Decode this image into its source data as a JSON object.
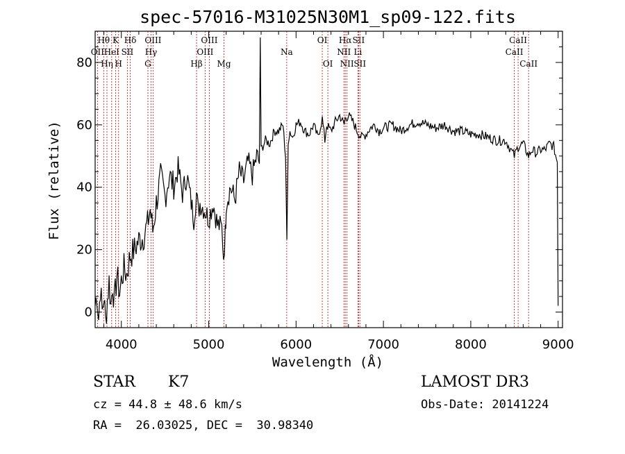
{
  "chart_data": {
    "type": "line",
    "title": "spec-57016-M31025N30M1_sp09-122.fits",
    "xlabel": "Wavelength (Å)",
    "ylabel": "Flux (relative)",
    "xlim": [
      3700,
      9050
    ],
    "ylim": [
      -5,
      90
    ],
    "xticks": [
      4000,
      5000,
      6000,
      7000,
      8000,
      9000
    ],
    "yticks": [
      0,
      20,
      40,
      60,
      80
    ],
    "series": [
      {
        "name": "spectrum",
        "x": [
          3700,
          3720,
          3740,
          3760,
          3780,
          3800,
          3820,
          3840,
          3860,
          3880,
          3900,
          3920,
          3950,
          3980,
          4000,
          4030,
          4060,
          4100,
          4150,
          4200,
          4250,
          4300,
          4330,
          4360,
          4400,
          4450,
          4500,
          4550,
          4600,
          4650,
          4700,
          4750,
          4800,
          4830,
          4860,
          4880,
          4900,
          4950,
          5000,
          5050,
          5100,
          5150,
          5170,
          5190,
          5200,
          5250,
          5300,
          5350,
          5400,
          5450,
          5500,
          5550,
          5580,
          5590,
          5600,
          5650,
          5700,
          5750,
          5800,
          5850,
          5880,
          5895,
          5910,
          5930,
          5960,
          6000,
          6050,
          6100,
          6150,
          6200,
          6250,
          6300,
          6330,
          6350,
          6400,
          6450,
          6500,
          6550,
          6563,
          6600,
          6650,
          6700,
          6750,
          6800,
          6850,
          6900,
          6950,
          7000,
          7100,
          7200,
          7300,
          7400,
          7500,
          7600,
          7700,
          7800,
          7900,
          8000,
          8100,
          8200,
          8300,
          8400,
          8498,
          8542,
          8600,
          8662,
          8700,
          8750,
          8800,
          8850,
          8900,
          8950,
          8990,
          9000
        ],
        "y": [
          2,
          6,
          -2,
          8,
          0,
          5,
          -3,
          4,
          10,
          2,
          9,
          3,
          12,
          6,
          10,
          14,
          12,
          18,
          20,
          23,
          24,
          28,
          33,
          26,
          35,
          43,
          37,
          44,
          40,
          46,
          38,
          44,
          35,
          30,
          38,
          32,
          35,
          33,
          30,
          35,
          28,
          27,
          18,
          25,
          35,
          40,
          36,
          45,
          42,
          48,
          44,
          50,
          48,
          88,
          52,
          55,
          54,
          58,
          58,
          60,
          50,
          22,
          55,
          58,
          56,
          60,
          61,
          58,
          57,
          60,
          56,
          62,
          55,
          60,
          58,
          61,
          63,
          60,
          62,
          63,
          61,
          58,
          56,
          57,
          59,
          60,
          58,
          59,
          60,
          58,
          60,
          61,
          60,
          59,
          60,
          58,
          58,
          57,
          57,
          56,
          55,
          55,
          50,
          53,
          54,
          50,
          52,
          51,
          52,
          52,
          54,
          53,
          48,
          2
        ]
      }
    ],
    "line_marks": [
      {
        "label": "Hθ",
        "wl": 3798,
        "row": 1
      },
      {
        "label": "OII",
        "wl": 3727,
        "row": 2
      },
      {
        "label": "Hη",
        "wl": 3835,
        "row": 3
      },
      {
        "label": "K",
        "wl": 3934,
        "row": 1
      },
      {
        "label": "HeI",
        "wl": 3889,
        "row": 2
      },
      {
        "label": "H",
        "wl": 3968,
        "row": 3
      },
      {
        "label": "Hδ",
        "wl": 4102,
        "row": 1
      },
      {
        "label": "SII",
        "wl": 4069,
        "row": 2
      },
      {
        "label": "OIII",
        "wl": 4363,
        "row": 1
      },
      {
        "label": "Hγ",
        "wl": 4340,
        "row": 2
      },
      {
        "label": "G",
        "wl": 4304,
        "row": 3
      },
      {
        "label": "OIII",
        "wl": 5007,
        "row": 1
      },
      {
        "label": "OIII",
        "wl": 4959,
        "row": 2
      },
      {
        "label": "Hβ",
        "wl": 4861,
        "row": 3
      },
      {
        "label": "Mg",
        "wl": 5175,
        "row": 3
      },
      {
        "label": "Na",
        "wl": 5893,
        "row": 2
      },
      {
        "label": "OI",
        "wl": 6300,
        "row": 1
      },
      {
        "label": "OI",
        "wl": 6364,
        "row": 3
      },
      {
        "label": "Hα",
        "wl": 6563,
        "row": 1
      },
      {
        "label": "SII",
        "wl": 6716,
        "row": 1
      },
      {
        "label": "NII",
        "wl": 6548,
        "row": 2
      },
      {
        "label": "Li",
        "wl": 6708,
        "row": 2
      },
      {
        "label": "NII",
        "wl": 6583,
        "row": 3
      },
      {
        "label": "SII",
        "wl": 6731,
        "row": 3
      },
      {
        "label": "CaII",
        "wl": 8542,
        "row": 1
      },
      {
        "label": "CaII",
        "wl": 8498,
        "row": 2
      },
      {
        "label": "CaII",
        "wl": 8662,
        "row": 3
      }
    ],
    "colors": {
      "line_marker": "#d02020",
      "spectrum": "#000000"
    }
  },
  "info": {
    "class": "STAR",
    "subclass": "K7",
    "survey": "LAMOST DR3",
    "cz": "cz = 44.8 ± 48.6 km/s",
    "obs_date": "Obs-Date: 20141224",
    "coords": "RA =  26.03025, DEC =  30.98340"
  }
}
